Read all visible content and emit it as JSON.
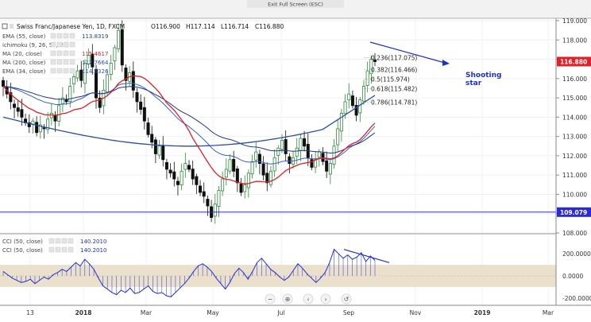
{
  "exit_fullscreen": "Exit Full Screen (ESC)",
  "header": {
    "symbol": "Swiss Franc/Japanese Yen, 1D, FXCM",
    "open": "O116.900",
    "high": "H117.114",
    "low": "L116.714",
    "close": "C116.880"
  },
  "indicators": [
    {
      "name": "EMA (55, close)",
      "value": "113.8319",
      "color": "#1f3f9f"
    },
    {
      "name": "ichimoku (9, 26, 52, 26)",
      "value": "",
      "color": "#9aa6c8"
    },
    {
      "name": "MA (20, close)",
      "value": "115.4617",
      "color": "#e0202a"
    },
    {
      "name": "MA (200, close)",
      "value": "112.7664",
      "color": "#2a4ea8"
    },
    {
      "name": "EMA (34, close)",
      "value": "114.6326",
      "color": "#2f57c9"
    }
  ],
  "cci_legend": [
    {
      "name": "CCI (50, close)",
      "value": "140.2010"
    },
    {
      "name": "CCI (50, close)",
      "value": "140.2010"
    }
  ],
  "annotation": {
    "line1": "Shooting",
    "line2": "star"
  },
  "price_badges": {
    "current": "116.880",
    "support": "109.079"
  },
  "controls": [
    "−",
    "⊕",
    "‹",
    "›",
    "↺"
  ],
  "colors": {
    "up": "#2f8a3b",
    "down": "#101010",
    "ma20": "#e0202a",
    "ma200": "#2a4ea8",
    "ema34": "#3a5fcf",
    "ema55": "#1c3a8c",
    "cci": "#1f30d0",
    "badge_current": "#e0202a",
    "badge_support": "#2b2bd6",
    "annotation": "#1f30d0"
  },
  "chart_data": {
    "type": "candlestick",
    "title": "Swiss Franc/Japanese Yen, 1D, FXCM",
    "price_axis": {
      "ylim": [
        108,
        119
      ],
      "ticks": [
        "119.000",
        "118.000",
        "117.000",
        "116.000",
        "115.000",
        "114.000",
        "113.000",
        "112.000",
        "111.000",
        "110.000",
        "109.000",
        "108.000"
      ]
    },
    "time_axis": {
      "ticks": [
        "13",
        "2018",
        "Mar",
        "May",
        "Jul",
        "Sep",
        "Nov",
        "2019",
        "Mar"
      ]
    },
    "support_level": 109.079,
    "fibonacci": [
      {
        "label": "0.236(117.075)",
        "value": 117.075
      },
      {
        "label": "0.382(116.466)",
        "value": 116.466
      },
      {
        "label": "0.5(115.974)",
        "value": 115.974
      },
      {
        "label": "0.618(115.482)",
        "value": 115.482
      },
      {
        "label": "0.786(114.781)",
        "value": 114.781
      }
    ],
    "closes": [
      115.6,
      115.2,
      114.8,
      114.5,
      114.3,
      114.0,
      113.7,
      113.5,
      113.8,
      113.2,
      113.6,
      113.4,
      113.9,
      114.2,
      113.8,
      114.6,
      115.0,
      114.8,
      115.6,
      116.1,
      116.4,
      115.9,
      116.8,
      117.2,
      116.6,
      115.0,
      114.5,
      115.4,
      116.2,
      116.8,
      117.6,
      118.5,
      116.7,
      115.9,
      116.3,
      115.4,
      114.8,
      114.4,
      113.8,
      113.1,
      112.7,
      112.1,
      112.5,
      111.8,
      111.3,
      111.1,
      110.8,
      110.5,
      111.2,
      111.6,
      111.3,
      110.8,
      110.5,
      110.1,
      109.9,
      109.4,
      108.8,
      109.5,
      110.2,
      110.8,
      111.3,
      111.8,
      111.2,
      110.6,
      110.1,
      110.5,
      111.1,
      111.7,
      112.2,
      111.6,
      111.0,
      110.6,
      111.2,
      111.9,
      112.4,
      112.8,
      112.1,
      111.6,
      111.9,
      112.4,
      112.9,
      112.5,
      111.9,
      111.4,
      111.8,
      112.2,
      111.7,
      111.2,
      111.6,
      112.5,
      113.4,
      114.2,
      114.8,
      115.2,
      114.6,
      114.1,
      114.9,
      115.6,
      116.4,
      117.0,
      116.88
    ],
    "cci_values": [
      40,
      10,
      -20,
      -40,
      -60,
      -50,
      -30,
      -70,
      -40,
      -10,
      -30,
      10,
      30,
      60,
      40,
      80,
      120,
      90,
      150,
      110,
      60,
      -20,
      -90,
      -120,
      -150,
      -170,
      -130,
      -150,
      -110,
      -160,
      -150,
      -120,
      -90,
      -140,
      -160,
      -150,
      -180,
      -190,
      -150,
      -110,
      -70,
      -20,
      40,
      90,
      110,
      80,
      40,
      -20,
      -70,
      -120,
      -60,
      20,
      70,
      30,
      -30,
      40,
      120,
      160,
      110,
      60,
      30,
      -10,
      -40,
      -10,
      50,
      110,
      70,
      20,
      -20,
      -60,
      -20,
      30,
      120,
      240,
      200,
      160,
      190,
      150,
      170,
      210,
      130,
      180,
      140
    ]
  }
}
